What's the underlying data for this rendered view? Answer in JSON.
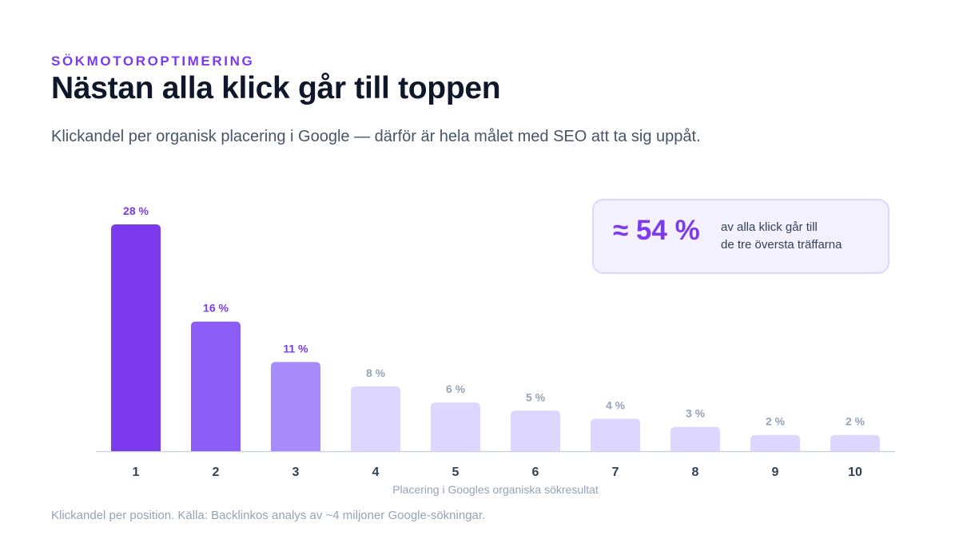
{
  "header": {
    "eyebrow": "SÖKMOTOROPTIMERING",
    "title": "Nästan alla klick går till toppen",
    "subtitle": "Klickandel per organisk placering i Google — därför är hela målet med SEO att ta sig uppåt."
  },
  "callout": {
    "value": "≈ 54 %",
    "line1": "av alla klick går till",
    "line2": "de tre översta träffarna"
  },
  "chart_data": {
    "type": "bar",
    "categories": [
      "1",
      "2",
      "3",
      "4",
      "5",
      "6",
      "7",
      "8",
      "9",
      "10"
    ],
    "values": [
      28,
      16,
      11,
      8,
      6,
      5,
      4,
      3,
      2,
      2
    ],
    "data_labels": [
      "28 %",
      "16 %",
      "11 %",
      "8 %",
      "6 %",
      "5 %",
      "4 %",
      "3 %",
      "2 %",
      "2 %"
    ],
    "xlabel": "Placering i Googles organiska sökresultat",
    "ylabel": "",
    "ylim": [
      0,
      28
    ],
    "grid": false,
    "legend": "none",
    "colors": {
      "bars": [
        "#7c3aed",
        "#8b5cf6",
        "#a78bfa",
        "#ddd6fe",
        "#ddd6fe",
        "#ddd6fe",
        "#ddd6fe",
        "#ddd6fe",
        "#ddd6fe",
        "#ddd6fe"
      ],
      "label_highlight": "#7c3aed",
      "label_muted": "#94a3b8",
      "axis": "#cbd5e1",
      "tick_label": "#334155",
      "xlabel": "#94a3b8"
    }
  },
  "footer": {
    "note": "Klickandel per position. Källa: Backlinkos analys av ~4 miljoner Google-sökningar."
  }
}
